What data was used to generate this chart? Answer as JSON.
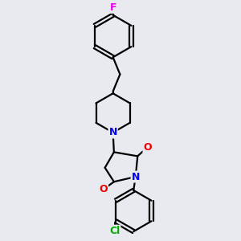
{
  "bg_color": "#e8eaf0",
  "bond_color": "#000000",
  "bond_width": 1.6,
  "atom_colors": {
    "F": "#ee00ee",
    "Cl": "#00aa00",
    "N": "#0000ee",
    "O": "#ee0000"
  }
}
